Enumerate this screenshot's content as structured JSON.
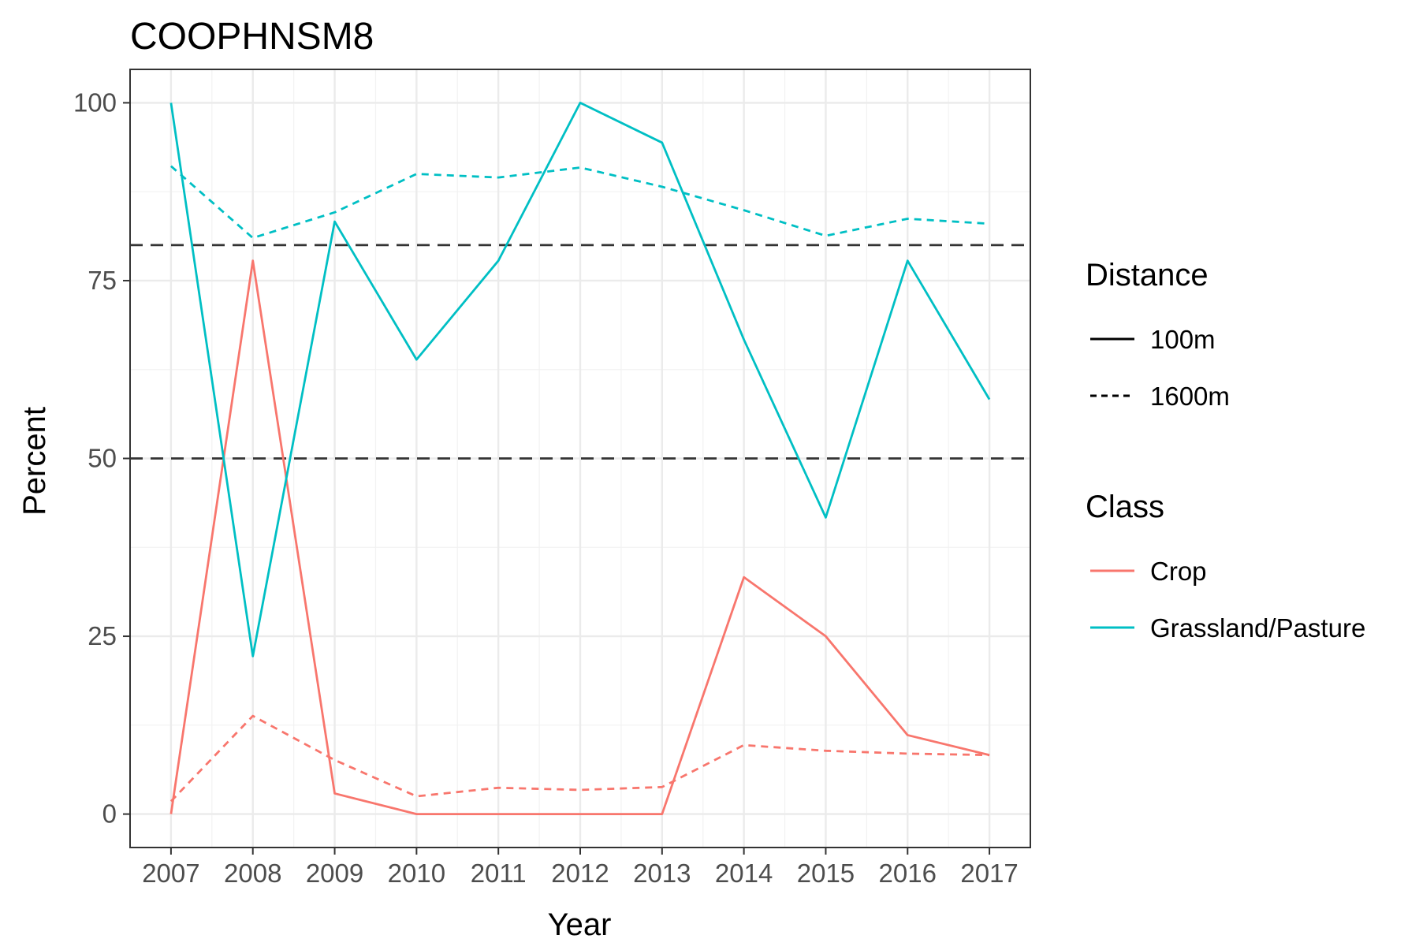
{
  "chart_data": {
    "type": "line",
    "title": "COOPHNSM8",
    "xlabel": "Year",
    "ylabel": "Percent",
    "x": [
      2007,
      2008,
      2009,
      2010,
      2011,
      2012,
      2013,
      2014,
      2015,
      2016,
      2017
    ],
    "x_tick_labels": [
      "2007",
      "2008",
      "2009",
      "2010",
      "2011",
      "2012",
      "2013",
      "2014",
      "2015",
      "2016",
      "2017"
    ],
    "xlim": [
      2006.5,
      2017.5
    ],
    "ylim": [
      -4.7,
      104.7
    ],
    "y_ticks": [
      0,
      25,
      50,
      75,
      100
    ],
    "y_tick_labels": [
      "0",
      "25",
      "50",
      "75",
      "100"
    ],
    "grid": true,
    "reference_lines": [
      {
        "y": 80,
        "style": "dashed",
        "color": "#333333"
      },
      {
        "y": 50,
        "style": "dashed",
        "color": "#333333"
      }
    ],
    "series": [
      {
        "class": "Crop",
        "distance": "100m",
        "color": "#F8766D",
        "linetype": "solid",
        "values": [
          0,
          77.8,
          2.9,
          0,
          0,
          0,
          0,
          33.3,
          25,
          11.1,
          8.3
        ]
      },
      {
        "class": "Crop",
        "distance": "1600m",
        "color": "#F8766D",
        "linetype": "dashed",
        "values": [
          1.8,
          13.8,
          7.6,
          2.5,
          3.7,
          3.4,
          3.8,
          9.7,
          8.9,
          8.5,
          8.3
        ]
      },
      {
        "class": "Grassland/Pasture",
        "distance": "100m",
        "color": "#00BFC4",
        "linetype": "solid",
        "values": [
          100,
          22.2,
          83.3,
          63.9,
          77.8,
          100,
          94.4,
          66.7,
          41.7,
          77.8,
          58.3
        ]
      },
      {
        "class": "Grassland/Pasture",
        "distance": "1600m",
        "color": "#00BFC4",
        "linetype": "dashed",
        "values": [
          91.1,
          81,
          84.6,
          90,
          89.5,
          90.9,
          88.2,
          84.9,
          81.3,
          83.7,
          83
        ]
      }
    ],
    "legend": {
      "placement": "right",
      "groups": [
        {
          "title": "Distance",
          "entries": [
            {
              "label": "100m",
              "linetype": "solid",
              "color": "#000000"
            },
            {
              "label": "1600m",
              "linetype": "dashed",
              "color": "#000000"
            }
          ]
        },
        {
          "title": "Class",
          "entries": [
            {
              "label": "Crop",
              "linetype": "solid",
              "color": "#F8766D"
            },
            {
              "label": "Grassland/Pasture",
              "linetype": "solid",
              "color": "#00BFC4"
            }
          ]
        }
      ]
    }
  }
}
